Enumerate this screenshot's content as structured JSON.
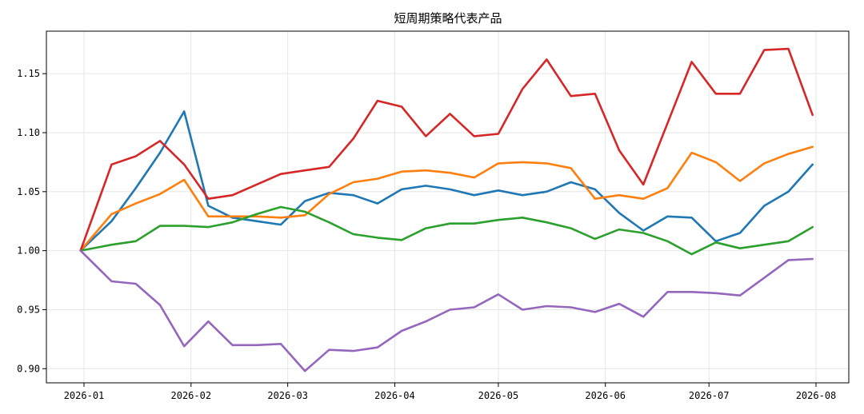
{
  "chart_data": {
    "type": "line",
    "title": "短周期策略代表产品",
    "xlabel": "",
    "ylabel": "",
    "x_ticks": [
      "2026-01",
      "2026-02",
      "2026-03",
      "2026-04",
      "2026-05",
      "2026-06",
      "2026-07",
      "2026-08"
    ],
    "x": [
      "2025-12-31",
      "2026-01-09",
      "2026-01-16",
      "2026-01-23",
      "2026-01-30",
      "2026-02-06",
      "2026-02-13",
      "2026-02-20",
      "2026-02-27",
      "2026-03-06",
      "2026-03-13",
      "2026-03-20",
      "2026-03-27",
      "2026-04-03",
      "2026-04-10",
      "2026-04-17",
      "2026-04-24",
      "2026-05-01",
      "2026-05-08",
      "2026-05-15",
      "2026-05-22",
      "2026-05-29",
      "2026-06-05",
      "2026-06-12",
      "2026-06-19",
      "2026-06-26",
      "2026-07-03",
      "2026-07-10",
      "2026-07-17",
      "2026-07-24",
      "2026-07-31"
    ],
    "ylim": [
      0.888,
      1.186
    ],
    "y_ticks": [
      0.9,
      0.95,
      1.0,
      1.05,
      1.1,
      1.15
    ],
    "grid": true,
    "legend": "none",
    "series": [
      {
        "color": "#1f77b4",
        "values": [
          1.0,
          1.025,
          1.053,
          1.083,
          1.118,
          1.038,
          1.028,
          1.025,
          1.022,
          1.042,
          1.049,
          1.047,
          1.04,
          1.052,
          1.055,
          1.052,
          1.047,
          1.051,
          1.047,
          1.05,
          1.058,
          1.052,
          1.032,
          1.017,
          1.029,
          1.028,
          1.008,
          1.015,
          1.038,
          1.05,
          1.073
        ]
      },
      {
        "color": "#ff7f0e",
        "values": [
          1.0,
          1.031,
          1.04,
          1.048,
          1.06,
          1.029,
          1.029,
          1.029,
          1.028,
          1.03,
          1.048,
          1.058,
          1.061,
          1.067,
          1.068,
          1.066,
          1.062,
          1.074,
          1.075,
          1.074,
          1.07,
          1.044,
          1.047,
          1.044,
          1.053,
          1.083,
          1.075,
          1.059,
          1.074,
          1.082,
          1.088
        ]
      },
      {
        "color": "#2ca02c",
        "values": [
          1.0,
          1.005,
          1.008,
          1.021,
          1.021,
          1.02,
          1.024,
          1.031,
          1.037,
          1.033,
          1.024,
          1.014,
          1.011,
          1.009,
          1.019,
          1.023,
          1.023,
          1.026,
          1.028,
          1.024,
          1.019,
          1.01,
          1.018,
          1.015,
          1.008,
          0.997,
          1.007,
          1.002,
          1.005,
          1.008,
          1.02
        ]
      },
      {
        "color": "#d62728",
        "values": [
          1.0,
          1.073,
          1.08,
          1.093,
          1.073,
          1.044,
          1.047,
          1.056,
          1.065,
          1.068,
          1.071,
          1.095,
          1.127,
          1.122,
          1.097,
          1.116,
          1.097,
          1.099,
          1.137,
          1.162,
          1.131,
          1.133,
          1.085,
          1.056,
          1.108,
          1.16,
          1.133,
          1.133,
          1.17,
          1.171,
          1.115
        ]
      },
      {
        "color": "#9467bd",
        "values": [
          1.0,
          0.974,
          0.972,
          0.954,
          0.919,
          0.94,
          0.92,
          0.92,
          0.921,
          0.898,
          0.916,
          0.915,
          0.918,
          0.932,
          0.94,
          0.95,
          0.952,
          0.963,
          0.95,
          0.953,
          0.952,
          0.948,
          0.955,
          0.944,
          0.965,
          0.965,
          0.964,
          0.962,
          0.977,
          0.992,
          0.993
        ]
      }
    ]
  }
}
